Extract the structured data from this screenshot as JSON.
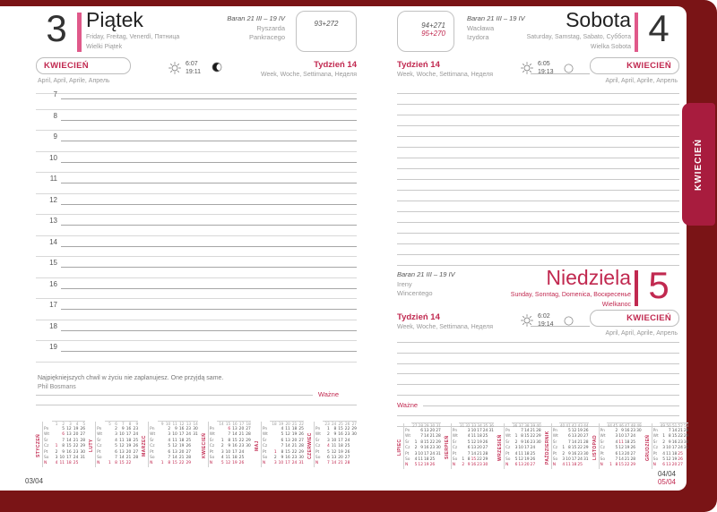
{
  "tab_label": "KWIECIEŃ",
  "footer": {
    "left_page": "03/04",
    "right_page_top": "04/04",
    "right_page_bottom": "05/04"
  },
  "colors": {
    "accent_red": "#c12950",
    "accent_pink": "#e0598a",
    "tab": "#a81c3e",
    "cover": "#7a1416"
  },
  "friday": {
    "number": "3",
    "name": "Piątek",
    "translations": "Friday, Freitag, Venerdì, Пятница",
    "holiday_note": "Wielki Piątek",
    "zodiac": "Baran 21 III – 19 IV",
    "nameday1": "Ryszarda",
    "nameday2": "Pankracego",
    "day_of_year": "93+272",
    "month_label": "KWIECIEŃ",
    "month_translations": "April, April, Aprile, Апрель",
    "sunrise": "6:07",
    "sunset": "19:11",
    "moon_phase": "waxing gibbous",
    "week_label": "Tydzień 14",
    "week_translations": "Week, Woche, Settimana, Неделя",
    "hours": [
      "7",
      "8",
      "9",
      "10",
      "11",
      "12",
      "13",
      "14",
      "15",
      "16",
      "17",
      "18",
      "19"
    ],
    "quote": "Najpiękniejszych chwil w życiu nie zaplanujesz. One przyjdą same.",
    "quote_author": "Phil Bosmans",
    "important_label": "Ważne"
  },
  "saturday": {
    "number": "4",
    "name": "Sobota",
    "translations": "Saturday, Samstag, Sabato, Суббота",
    "holiday_note": "Wielka Sobota",
    "zodiac": "Baran 21 III – 19 IV",
    "nameday1": "Wacława",
    "nameday2": "Izydora",
    "day_of_year": "94+271",
    "day_of_year_red": "95+270",
    "month_label": "KWIECIEŃ",
    "month_translations": "April, April, Aprile, Апрель",
    "sunrise": "6:05",
    "sunset": "19:13",
    "moon_phase": "full moon",
    "week_label": "Tydzień 14",
    "week_translations": "Week, Woche, Settimana, Неделя"
  },
  "sunday": {
    "number": "5",
    "name": "Niedziela",
    "translations": "Sunday, Sonntag, Domenica, Воскресенье",
    "holiday_note": "Wielkanoc",
    "zodiac": "Baran 21 III – 19 IV",
    "nameday1": "Ireny",
    "nameday2": "Wincentego",
    "month_label": "KWIECIEŃ",
    "month_translations": "April, April, Aprile, Апрель",
    "sunrise": "6:02",
    "sunset": "19:14",
    "moon_phase": "full moon",
    "week_label": "Tydzień 14",
    "week_translations": "Week, Woche, Settimana, Неделя",
    "important_label": "Ważne"
  },
  "mini_calendars_left": [
    {
      "name": "STYCZEŃ",
      "weeks": "1 2 3 4 5",
      "rows": [
        [
          "Pn",
          ". 5 12 19 26"
        ],
        [
          "Wt",
          ". !6 13 20 27"
        ],
        [
          "Śr",
          ". 7 14 21 28"
        ],
        [
          "Cz",
          "!1 8 15 22 29"
        ],
        [
          "Pt",
          "2 9 16 23 30"
        ],
        [
          "So",
          "3 10 17 24 31"
        ],
        [
          "N",
          "!4 !11 !18 !25"
        ]
      ]
    },
    {
      "name": "LUTY",
      "weeks": "5 6 7 8 9",
      "rows": [
        [
          "Pn",
          ". 2 9 16 23"
        ],
        [
          "Wt",
          ". 3 10 17 24"
        ],
        [
          "Śr",
          ". 4 11 18 25"
        ],
        [
          "Cz",
          ". 5 12 19 26"
        ],
        [
          "Pt",
          ". 6 13 20 27"
        ],
        [
          "So",
          ". 7 14 21 28"
        ],
        [
          "N",
          "!1 !8 !15 !22"
        ]
      ]
    },
    {
      "name": "MARZEC",
      "weeks": "9 10 11 12 13 14",
      "rows": [
        [
          "Pn",
          ". 2 9 16 23 30"
        ],
        [
          "Wt",
          ". 3 10 17 24 31"
        ],
        [
          "Śr",
          ". 4 11 18 25"
        ],
        [
          "Cz",
          ". 5 12 19 26"
        ],
        [
          "Pt",
          ". 6 13 20 27"
        ],
        [
          "So",
          ". 7 14 21 28"
        ],
        [
          "N",
          "!1 !8 !15 !22 !29"
        ]
      ]
    },
    {
      "name": "KWIECIEŃ",
      "weeks": "14 15 16 17 18",
      "rows": [
        [
          "Pn",
          ". !6 13 20 27"
        ],
        [
          "Wt",
          ". 7 14 21 28"
        ],
        [
          "Śr",
          "1 8 15 22 29"
        ],
        [
          "Cz",
          "2 9 16 23 30"
        ],
        [
          "Pt",
          "3 10 17 24"
        ],
        [
          "So",
          "4 11 18 25"
        ],
        [
          "N",
          "!5 !12 !19 !26"
        ]
      ]
    },
    {
      "name": "MAJ",
      "weeks": "18 19 20 21 22",
      "rows": [
        [
          "Pn",
          ". 4 11 18 25"
        ],
        [
          "Wt",
          ". 5 12 19 26"
        ],
        [
          "Śr",
          ". 6 13 20 27"
        ],
        [
          "Cz",
          ". 7 14 21 28"
        ],
        [
          "Pt",
          "!1 8 15 22 29"
        ],
        [
          "So",
          "2 9 16 23 30"
        ],
        [
          "N",
          "!3 !10 !17 !24 !31"
        ]
      ]
    },
    {
      "name": "CZERWIEC",
      "weeks": "23 24 25 26 27",
      "rows": [
        [
          "Pn",
          "1 8 15 22 29"
        ],
        [
          "Wt",
          "2 9 16 23 30"
        ],
        [
          "Śr",
          "3 10 17 24"
        ],
        [
          "Cz",
          "!4 11 18 25"
        ],
        [
          "Pt",
          "5 12 19 26"
        ],
        [
          "So",
          "6 13 20 27"
        ],
        [
          "N",
          "!7 !14 !21 !28"
        ]
      ]
    }
  ],
  "mini_calendars_right": [
    {
      "name": "LIPIEC",
      "weeks": "27 28 29 30 31",
      "rows": [
        [
          "Pn",
          ". 6 13 20 27"
        ],
        [
          "Wt",
          ". 7 14 21 28"
        ],
        [
          "Śr",
          "1 8 15 22 29"
        ],
        [
          "Cz",
          "2 9 16 23 30"
        ],
        [
          "Pt",
          "3 10 17 24 31"
        ],
        [
          "So",
          "4 11 18 25"
        ],
        [
          "N",
          "!5 !12 !19 !26"
        ]
      ]
    },
    {
      "name": "SIERPIEŃ",
      "weeks": "31 32 33 34 35 36",
      "rows": [
        [
          "Pn",
          ". 3 10 17 24 31"
        ],
        [
          "Wt",
          ". 4 11 18 25"
        ],
        [
          "Śr",
          ". 5 12 19 26"
        ],
        [
          "Cz",
          ". 6 13 20 27"
        ],
        [
          "Pt",
          ". 7 14 21 28"
        ],
        [
          "So",
          "1 8 !15 22 29"
        ],
        [
          "N",
          "!2 !9 !16 !23 !30"
        ]
      ]
    },
    {
      "name": "WRZESIEŃ",
      "weeks": "36 37 38 39 40",
      "rows": [
        [
          "Pn",
          ". 7 14 21 28"
        ],
        [
          "Wt",
          "1 8 15 22 29"
        ],
        [
          "Śr",
          "2 9 16 23 30"
        ],
        [
          "Cz",
          "3 10 17 24"
        ],
        [
          "Pt",
          "4 11 18 25"
        ],
        [
          "So",
          "5 12 19 26"
        ],
        [
          "N",
          "!6 !13 !20 !27"
        ]
      ]
    },
    {
      "name": "PAŹDZIERNIK",
      "weeks": "40 41 42 43 44",
      "rows": [
        [
          "Pn",
          ". 5 12 19 26"
        ],
        [
          "Wt",
          ". 6 13 20 27"
        ],
        [
          "Śr",
          ". 7 14 21 28"
        ],
        [
          "Cz",
          "1 8 15 22 29"
        ],
        [
          "Pt",
          "2 9 16 23 30"
        ],
        [
          "So",
          "3 10 17 24 31"
        ],
        [
          "N",
          "!4 !11 !18 !25"
        ]
      ]
    },
    {
      "name": "LISTOPAD",
      "weeks": "44 45 46 47 48 49",
      "rows": [
        [
          "Pn",
          ". 2 9 16 23 30"
        ],
        [
          "Wt",
          ". 3 10 17 24"
        ],
        [
          "Śr",
          ". 4 !11 18 25"
        ],
        [
          "Cz",
          ". 5 12 19 26"
        ],
        [
          "Pt",
          ". 6 13 20 27"
        ],
        [
          "So",
          ". 7 14 21 28"
        ],
        [
          "N",
          "!1 !8 !15 !22 !29"
        ]
      ]
    },
    {
      "name": "GRUDZIEŃ",
      "weeks": "49 50 51 52 53",
      "rows": [
        [
          "Pn",
          ". 7 14 21 28"
        ],
        [
          "Wt",
          "1 8 15 22 29"
        ],
        [
          "Śr",
          "2 9 16 23 30"
        ],
        [
          "Cz",
          "3 10 17 24 31"
        ],
        [
          "Pt",
          "4 11 18 !25"
        ],
        [
          "So",
          "5 12 19 !26"
        ],
        [
          "N",
          "!6 !13 !20 !27"
        ]
      ]
    }
  ]
}
